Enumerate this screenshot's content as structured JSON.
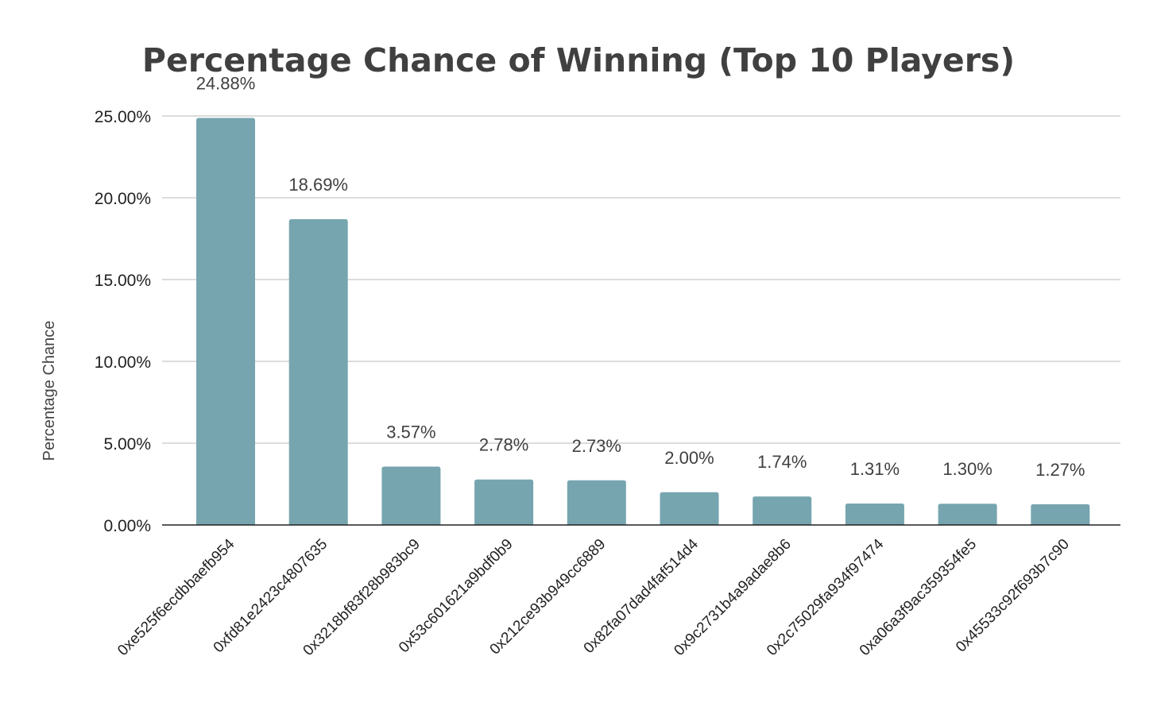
{
  "chart_data": {
    "type": "bar",
    "title": "Percentage Chance of Winning (Top 10 Players)",
    "xlabel": "",
    "ylabel": "Percentage Chance",
    "categories": [
      "0xe525f6ecdbbaefb954",
      "0xfd81e2423c4807635",
      "0x3218bf83f28b983bc9",
      "0x53c601621a9bdf0b9",
      "0x212ce93b949cc6889",
      "0x82fa07dad4faf514d4",
      "0x9c2731b4a9adae8b6",
      "0x2c75029fa934f97474",
      "0xa06a3f9ac359354fe5",
      "0x45533c92f693b7c90"
    ],
    "values": [
      24.88,
      18.69,
      3.57,
      2.78,
      2.73,
      2.0,
      1.74,
      1.31,
      1.3,
      1.27
    ],
    "data_labels": [
      "24.88%",
      "18.69%",
      "3.57%",
      "2.78%",
      "2.73%",
      "2.00%",
      "1.74%",
      "1.31%",
      "1.30%",
      "1.27%"
    ],
    "yticks": [
      0,
      5,
      10,
      15,
      20,
      25
    ],
    "ytick_labels": [
      "0.00%",
      "5.00%",
      "10.00%",
      "15.00%",
      "20.00%",
      "25.00%"
    ],
    "ylim": [
      0,
      25
    ],
    "grid": true,
    "legend": "none",
    "colors": {
      "bar": "#76a5af",
      "gridline": "#c8c8c8",
      "axis": "#222222",
      "title": "#404040"
    }
  }
}
